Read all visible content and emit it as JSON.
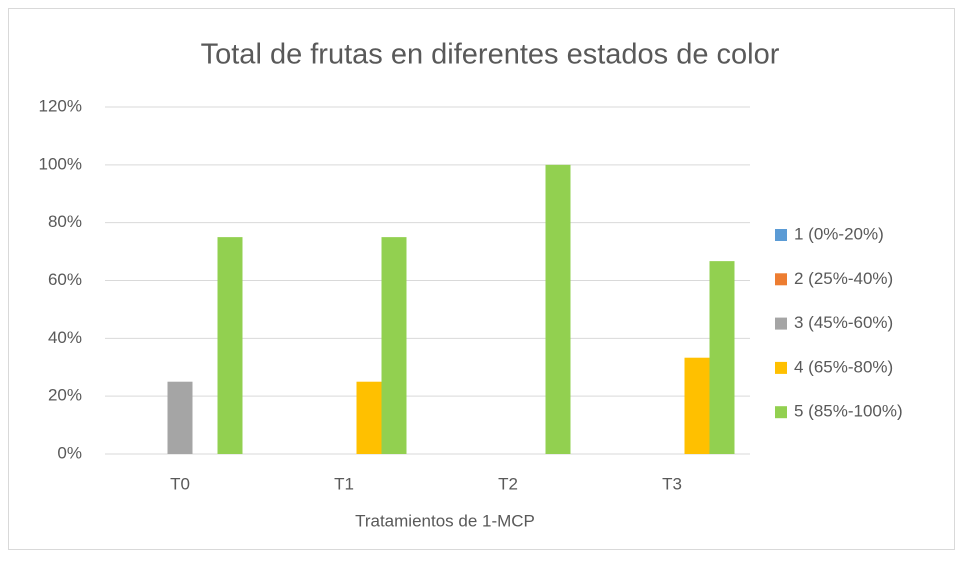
{
  "chart_data": {
    "type": "bar",
    "title": "Total de frutas en diferentes estados de color",
    "x_label": "Tratamientos de 1-MCP",
    "categories": [
      "T0",
      "T1",
      "T2",
      "T3"
    ],
    "series": [
      {
        "name": "1 (0%-20%)",
        "color": "#5b9bd5",
        "values": [
          0,
          0,
          0,
          0
        ]
      },
      {
        "name": "2 (25%-40%)",
        "color": "#ed7d31",
        "values": [
          0,
          0,
          0,
          0
        ]
      },
      {
        "name": "3 (45%-60%)",
        "color": "#a5a5a5",
        "values": [
          25,
          0,
          0,
          0
        ]
      },
      {
        "name": "4 (65%-80%)",
        "color": "#ffc000",
        "values": [
          0,
          25,
          0,
          33.3
        ]
      },
      {
        "name": "5 (85%-100%)",
        "color": "#92d050",
        "values": [
          75,
          75,
          100,
          66.7
        ]
      }
    ],
    "ylim": [
      0,
      120
    ],
    "yticks": [
      {
        "value": 0,
        "label": "0%"
      },
      {
        "value": 20,
        "label": "20%"
      },
      {
        "value": 40,
        "label": "40%"
      },
      {
        "value": 60,
        "label": "60%"
      },
      {
        "value": 80,
        "label": "80%"
      },
      {
        "value": 100,
        "label": "100%"
      },
      {
        "value": 120,
        "label": "120%"
      }
    ],
    "grid": true,
    "legend": "right"
  }
}
